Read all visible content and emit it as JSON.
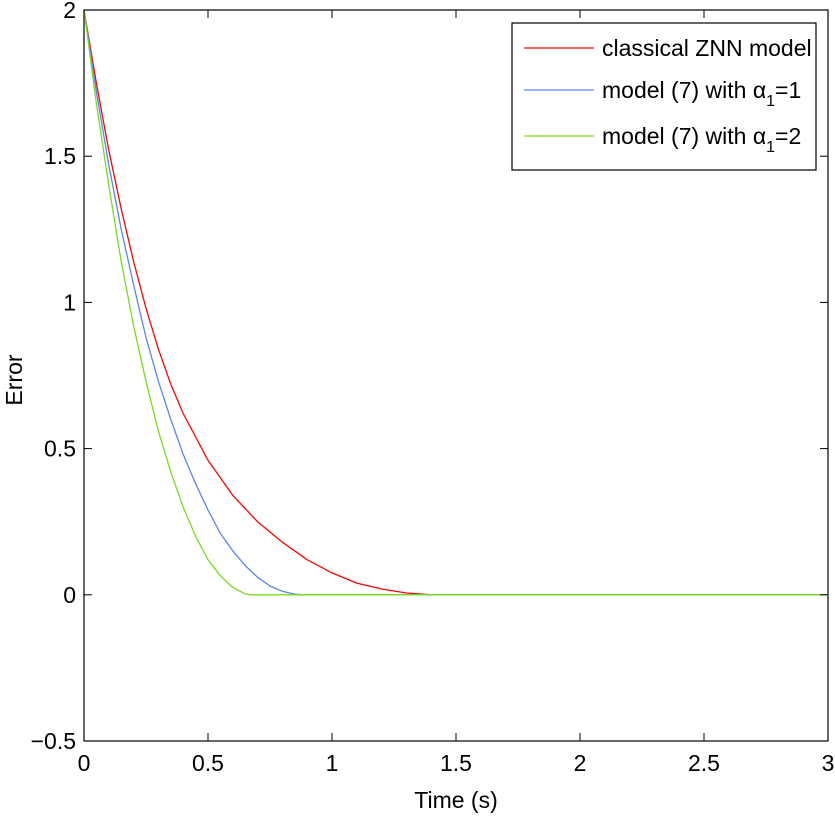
{
  "chart_data": {
    "type": "line",
    "xlabel": "Time (s)",
    "ylabel": "Error",
    "xlim": [
      0,
      3
    ],
    "ylim": [
      -0.5,
      2
    ],
    "xticks": [
      "0",
      "0.5",
      "1",
      "1.5",
      "2",
      "2.5",
      "3"
    ],
    "yticks": [
      "−0.5",
      "0",
      "0.5",
      "1",
      "1.5",
      "2"
    ],
    "grid": false,
    "legend_position": "top-right",
    "series": [
      {
        "name": "classical ZNN model",
        "color": "#ff0000",
        "x": [
          0,
          0.05,
          0.1,
          0.15,
          0.2,
          0.25,
          0.3,
          0.35,
          0.4,
          0.5,
          0.6,
          0.7,
          0.8,
          0.9,
          1.0,
          1.1,
          1.2,
          1.3,
          1.4,
          1.45,
          3.0
        ],
        "y": [
          2.0,
          1.75,
          1.52,
          1.32,
          1.14,
          0.98,
          0.84,
          0.72,
          0.62,
          0.46,
          0.34,
          0.25,
          0.18,
          0.12,
          0.075,
          0.04,
          0.02,
          0.006,
          0.0,
          0.0,
          0.0
        ]
      },
      {
        "name": "model (7) with α1=1",
        "name_parts": {
          "prefix": "model (7) with ",
          "symbol": "α",
          "subscript": "1",
          "suffix": "=1"
        },
        "color": "#5588ee",
        "x": [
          0,
          0.05,
          0.1,
          0.15,
          0.2,
          0.25,
          0.3,
          0.35,
          0.4,
          0.45,
          0.5,
          0.55,
          0.6,
          0.65,
          0.7,
          0.75,
          0.8,
          0.85,
          0.88,
          3.0
        ],
        "y": [
          2.0,
          1.72,
          1.47,
          1.25,
          1.06,
          0.88,
          0.73,
          0.6,
          0.48,
          0.38,
          0.29,
          0.21,
          0.15,
          0.1,
          0.06,
          0.03,
          0.012,
          0.002,
          0.0,
          0.0
        ]
      },
      {
        "name": "model (7) with α1=2",
        "name_parts": {
          "prefix": "model (7) with ",
          "symbol": "α",
          "subscript": "1",
          "suffix": "=2"
        },
        "color": "#77dd22",
        "x": [
          0,
          0.05,
          0.1,
          0.15,
          0.2,
          0.25,
          0.3,
          0.35,
          0.4,
          0.45,
          0.5,
          0.55,
          0.6,
          0.65,
          0.67,
          3.0
        ],
        "y": [
          2.0,
          1.68,
          1.4,
          1.14,
          0.92,
          0.73,
          0.56,
          0.42,
          0.3,
          0.2,
          0.12,
          0.065,
          0.025,
          0.003,
          0.0,
          0.0
        ]
      }
    ]
  }
}
